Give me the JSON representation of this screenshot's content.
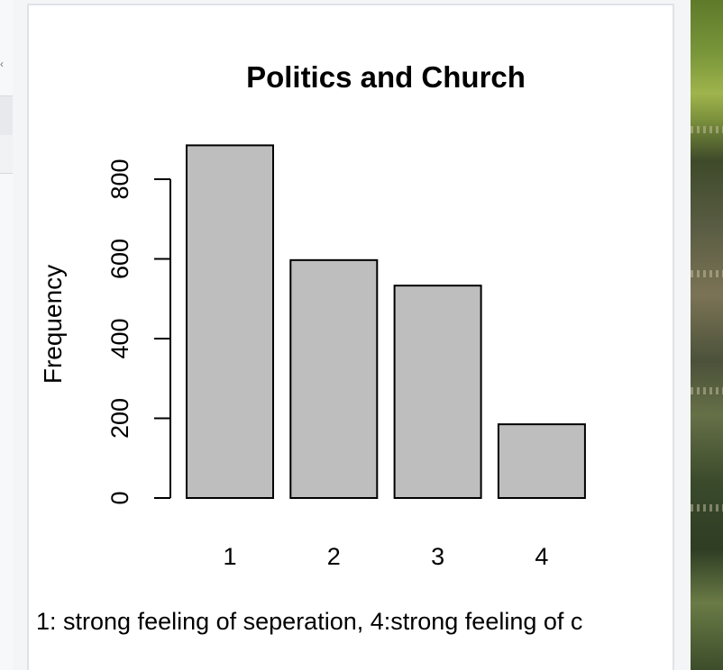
{
  "chart_data": {
    "type": "bar",
    "title": "Politics and Church",
    "xlabel": "",
    "ylabel": "Frequency",
    "categories": [
      "1",
      "2",
      "3",
      "4"
    ],
    "values": [
      885,
      597,
      533,
      185
    ],
    "yticks": [
      "0",
      "200",
      "400",
      "600",
      "800"
    ],
    "ylim": [
      0,
      900
    ],
    "bar_color": "#bebebe",
    "grid": false,
    "legend": "none"
  },
  "caption": "1: strong feeling of seperation, 4:strong feeling of c"
}
